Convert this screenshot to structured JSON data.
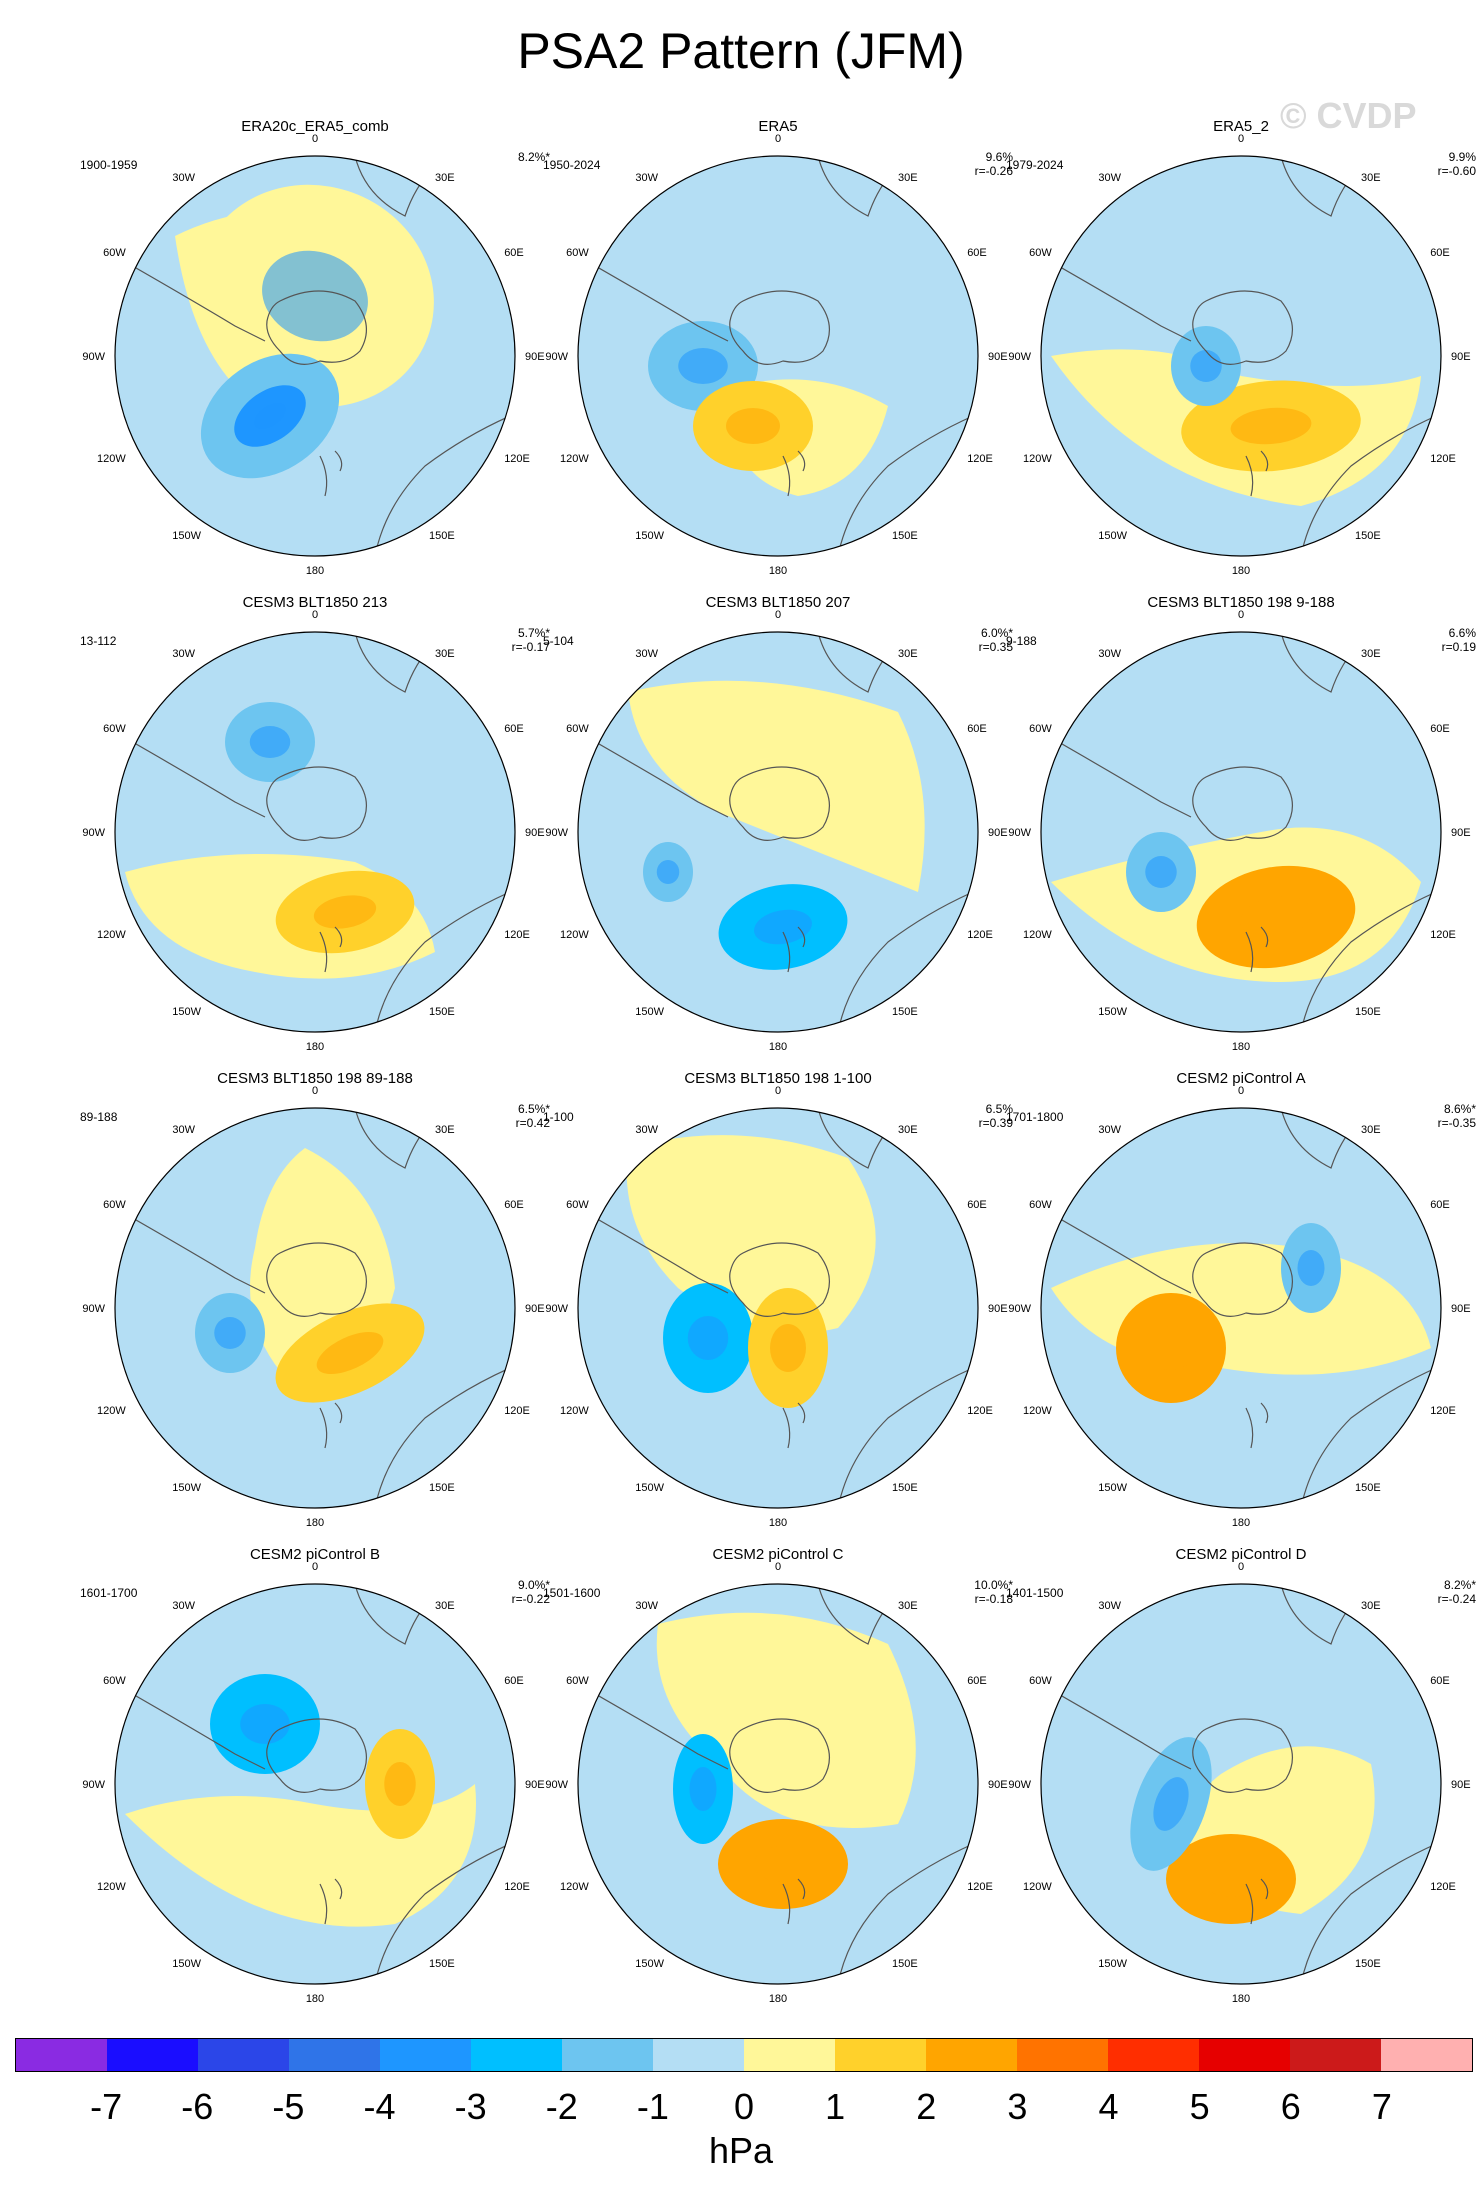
{
  "header": {
    "title": "PSA2 Pattern (JFM)",
    "watermark": "© CVDP"
  },
  "map_labels": [
    "0",
    "30E",
    "60E",
    "90E",
    "120E",
    "150E",
    "180",
    "150W",
    "120W",
    "90W",
    "60W",
    "30W"
  ],
  "colors": {
    "ocean_neg1": "#b4def4",
    "land_line": "#555555",
    "boundary": "#000000"
  },
  "panels": [
    {
      "title": "ERA20c_ERA5_comb",
      "period": "1900-1959",
      "pct": "8.2%*",
      "r": ""
    },
    {
      "title": "ERA5",
      "period": "1950-2024",
      "pct": "9.6%",
      "r": "r=-0.26"
    },
    {
      "title": "ERA5_2",
      "period": "1979-2024",
      "pct": "9.9%",
      "r": "r=-0.60"
    },
    {
      "title": "CESM3 BLT1850 213",
      "period": "13-112",
      "pct": "5.7%*",
      "r": "r=-0.17"
    },
    {
      "title": "CESM3 BLT1850 207",
      "period": "5-104",
      "pct": "6.0%*",
      "r": "r=0.35"
    },
    {
      "title": "CESM3 BLT1850 198 9-188",
      "period": "9-188",
      "pct": "6.6%",
      "r": "r=0.19"
    },
    {
      "title": "CESM3 BLT1850 198 89-188",
      "period": "89-188",
      "pct": "6.5%*",
      "r": "r=0.42"
    },
    {
      "title": "CESM3 BLT1850 198 1-100",
      "period": "1-100",
      "pct": "6.5%",
      "r": "r=0.39"
    },
    {
      "title": "CESM2 piControl A",
      "period": "1701-1800",
      "pct": "8.6%*",
      "r": "r=-0.35"
    },
    {
      "title": "CESM2 piControl B",
      "period": "1601-1700",
      "pct": "9.0%*",
      "r": "r=-0.22"
    },
    {
      "title": "CESM2 piControl C",
      "period": "1501-1600",
      "pct": "10.0%*",
      "r": "r=-0.18"
    },
    {
      "title": "CESM2 piControl D",
      "period": "1401-1500",
      "pct": "8.2%*",
      "r": "r=-0.24"
    }
  ],
  "colorbar": {
    "colors": [
      "#8a2be2",
      "#1a0dff",
      "#2b46e8",
      "#2f74e8",
      "#1e96ff",
      "#00bfff",
      "#6dc5f0",
      "#b4def4",
      "#fff799",
      "#ffd12b",
      "#ffa500",
      "#ff7300",
      "#ff2e00",
      "#e60000",
      "#cc1a1a",
      "#ffb0b0"
    ],
    "ticks": [
      "-7",
      "-6",
      "-5",
      "-4",
      "-3",
      "-2",
      "-1",
      "0",
      "1",
      "2",
      "3",
      "4",
      "5",
      "6",
      "7"
    ],
    "units": "hPa"
  },
  "anomaly_blobs": [
    [
      {
        "color": "#fff799",
        "shape": "big-yellow-north"
      },
      {
        "color": "#6dc5f0",
        "level": -2
      },
      {
        "color": "#1e96ff",
        "level": -4
      }
    ],
    [
      {
        "color": "#6dc5f0",
        "level": -2
      },
      {
        "color": "#ffd12b",
        "level": 2
      }
    ],
    [
      {
        "color": "#ffd12b",
        "level": 2
      },
      {
        "color": "#6dc5f0",
        "level": -2
      }
    ],
    [
      {
        "color": "#6dc5f0",
        "level": -2
      },
      {
        "color": "#ffd12b",
        "level": 2
      }
    ],
    [
      {
        "color": "#00bfff",
        "level": -3
      },
      {
        "color": "#6dc5f0",
        "level": -2
      }
    ],
    [
      {
        "color": "#ffa500",
        "level": 3
      },
      {
        "color": "#6dc5f0",
        "level": -2
      }
    ],
    [
      {
        "color": "#ffd12b",
        "level": 2
      },
      {
        "color": "#6dc5f0",
        "level": -2
      }
    ],
    [
      {
        "color": "#00bfff",
        "level": -3
      },
      {
        "color": "#ffd12b",
        "level": 2
      }
    ],
    [
      {
        "color": "#ffa500",
        "level": 3
      },
      {
        "color": "#6dc5f0",
        "level": -2
      }
    ],
    [
      {
        "color": "#00bfff",
        "level": -3
      },
      {
        "color": "#ffd12b",
        "level": 2
      }
    ],
    [
      {
        "color": "#ffa500",
        "level": 3
      },
      {
        "color": "#00bfff",
        "level": -3
      }
    ],
    [
      {
        "color": "#ffa500",
        "level": 3
      },
      {
        "color": "#6dc5f0",
        "level": -2
      }
    ]
  ]
}
